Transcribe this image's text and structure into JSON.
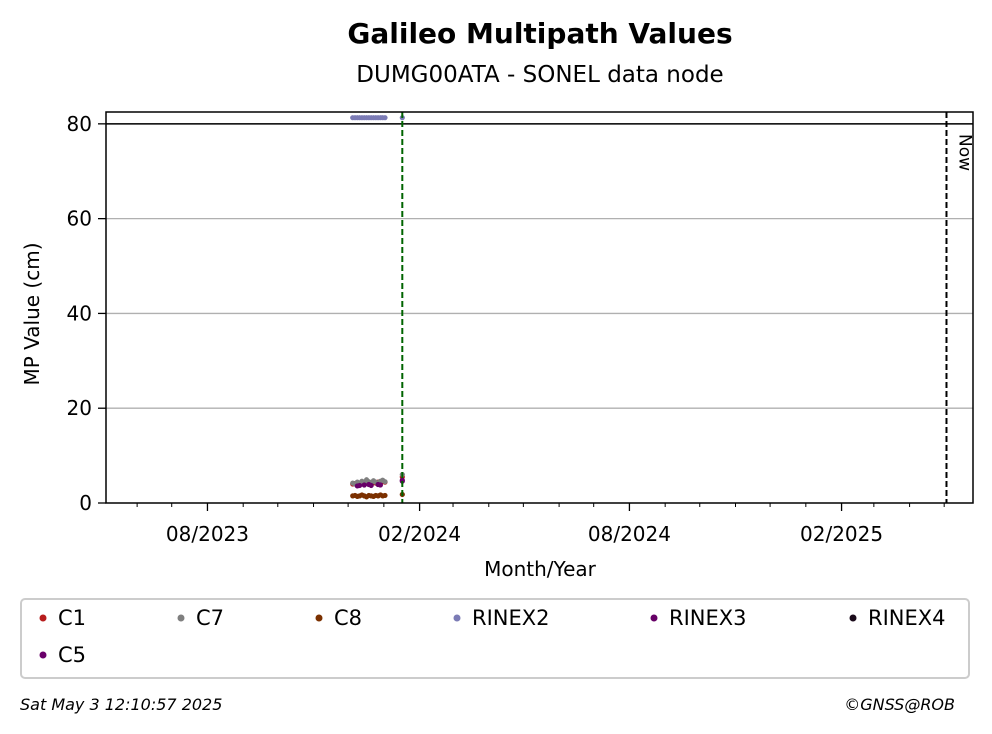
{
  "chart_data": {
    "type": "scatter",
    "title": "Galileo Multipath Values",
    "subtitle": "DUMG00ATA - SONEL data node",
    "xlabel": "Month/Year",
    "ylabel": "MP Value (cm)",
    "xlim": [
      "2023-05-05",
      "2025-05-26"
    ],
    "ylim": [
      0,
      82.5
    ],
    "x_ticks": [
      {
        "date": "2023-08-01",
        "label": "08/2023"
      },
      {
        "date": "2024-02-01",
        "label": "02/2024"
      },
      {
        "date": "2024-08-01",
        "label": "08/2024"
      },
      {
        "date": "2025-02-01",
        "label": "02/2025"
      }
    ],
    "minor_x_ticks": [
      "2023-06-01",
      "2023-07-01",
      "2023-09-01",
      "2023-10-01",
      "2023-11-01",
      "2023-12-01",
      "2024-01-01",
      "2024-03-01",
      "2024-04-01",
      "2024-05-01",
      "2024-06-01",
      "2024-07-01",
      "2024-09-01",
      "2024-10-01",
      "2024-11-01",
      "2024-12-01",
      "2025-01-01",
      "2025-03-01",
      "2025-04-01",
      "2025-05-01"
    ],
    "y_ticks": [
      0,
      20,
      40,
      60,
      80
    ],
    "grid": "y",
    "reference_line_y": 80,
    "vlines": [
      {
        "date": "2024-01-17",
        "color": "#006400",
        "style": "dashed",
        "label": ""
      },
      {
        "date": "2025-05-03",
        "color": "#000000",
        "style": "dashed",
        "label": "Now"
      }
    ],
    "series": [
      {
        "name": "C1",
        "color": "#b71c1c",
        "points": [
          [
            "2023-12-05",
            4.0
          ],
          [
            "2023-12-07",
            4.1
          ],
          [
            "2023-12-09",
            4.0
          ],
          [
            "2023-12-11",
            4.2
          ],
          [
            "2023-12-13",
            4.1
          ],
          [
            "2023-12-15",
            4.3
          ],
          [
            "2023-12-17",
            4.2
          ],
          [
            "2023-12-19",
            4.0
          ],
          [
            "2023-12-21",
            4.1
          ],
          [
            "2023-12-23",
            4.3
          ],
          [
            "2023-12-25",
            4.2
          ],
          [
            "2023-12-27",
            4.4
          ],
          [
            "2023-12-29",
            4.3
          ],
          [
            "2023-12-31",
            4.5
          ],
          [
            "2024-01-02",
            4.4
          ],
          [
            "2024-01-17",
            5.5
          ]
        ]
      },
      {
        "name": "C7",
        "color": "#7f7f7f",
        "points": [
          [
            "2023-12-05",
            4.2
          ],
          [
            "2023-12-07",
            4.0
          ],
          [
            "2023-12-09",
            4.4
          ],
          [
            "2023-12-11",
            4.1
          ],
          [
            "2023-12-13",
            4.6
          ],
          [
            "2023-12-15",
            4.3
          ],
          [
            "2023-12-17",
            4.9
          ],
          [
            "2023-12-19",
            4.5
          ],
          [
            "2023-12-21",
            4.2
          ],
          [
            "2023-12-23",
            4.7
          ],
          [
            "2023-12-25",
            4.4
          ],
          [
            "2023-12-27",
            4.1
          ],
          [
            "2023-12-29",
            4.6
          ],
          [
            "2023-12-31",
            4.8
          ],
          [
            "2024-01-02",
            4.5
          ],
          [
            "2024-01-17",
            6.0
          ]
        ]
      },
      {
        "name": "C8",
        "color": "#7b3000",
        "points": [
          [
            "2023-12-05",
            1.5
          ],
          [
            "2023-12-07",
            1.6
          ],
          [
            "2023-12-09",
            1.4
          ],
          [
            "2023-12-11",
            1.5
          ],
          [
            "2023-12-13",
            1.7
          ],
          [
            "2023-12-15",
            1.5
          ],
          [
            "2023-12-17",
            1.3
          ],
          [
            "2023-12-19",
            1.6
          ],
          [
            "2023-12-21",
            1.5
          ],
          [
            "2023-12-23",
            1.4
          ],
          [
            "2023-12-25",
            1.6
          ],
          [
            "2023-12-27",
            1.5
          ],
          [
            "2023-12-29",
            1.7
          ],
          [
            "2023-12-31",
            1.5
          ],
          [
            "2024-01-02",
            1.6
          ],
          [
            "2024-01-17",
            1.8
          ]
        ]
      },
      {
        "name": "RINEX2",
        "color": "#7b7bb5",
        "points": [
          [
            "2023-12-05",
            81.3
          ],
          [
            "2023-12-07",
            81.3
          ],
          [
            "2023-12-09",
            81.3
          ],
          [
            "2023-12-11",
            81.3
          ],
          [
            "2023-12-13",
            81.3
          ],
          [
            "2023-12-15",
            81.3
          ],
          [
            "2023-12-17",
            81.3
          ],
          [
            "2023-12-19",
            81.3
          ],
          [
            "2023-12-21",
            81.3
          ],
          [
            "2023-12-23",
            81.3
          ],
          [
            "2023-12-25",
            81.3
          ],
          [
            "2023-12-27",
            81.3
          ],
          [
            "2023-12-29",
            81.3
          ],
          [
            "2023-12-31",
            81.3
          ],
          [
            "2024-01-02",
            81.3
          ],
          [
            "2024-01-17",
            81.3
          ]
        ]
      },
      {
        "name": "RINEX3",
        "color": "#660066",
        "points": [
          [
            "2023-12-09",
            3.6
          ],
          [
            "2023-12-15",
            3.8
          ],
          [
            "2023-12-21",
            3.7
          ],
          [
            "2023-12-27",
            3.9
          ],
          [
            "2024-01-17",
            4.8
          ]
        ]
      },
      {
        "name": "RINEX4",
        "color": "#1a0a1a",
        "points": []
      },
      {
        "name": "C5",
        "color": "#6a006a",
        "points": [
          [
            "2023-12-11",
            3.7
          ],
          [
            "2023-12-19",
            3.9
          ],
          [
            "2023-12-29",
            3.8
          ],
          [
            "2024-01-17",
            4.6
          ]
        ]
      }
    ]
  },
  "footer": {
    "timestamp": "Sat May  3 12:10:57 2025",
    "credit": "©GNSS@ROB"
  }
}
